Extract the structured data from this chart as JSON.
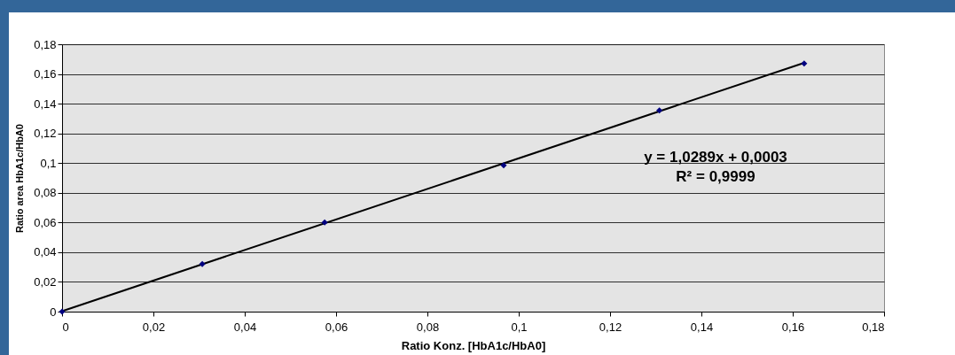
{
  "chart_data": {
    "type": "scatter",
    "xlabel": "Ratio Konz. [HbA1c/HbA0]",
    "ylabel": "Ratio area HbA1c/HbA0",
    "x": [
      0,
      0.0307,
      0.0575,
      0.0967,
      0.1308,
      0.1625
    ],
    "series": [
      {
        "color": "#000080",
        "values": [
          0,
          0.032,
          0.06,
          0.0985,
          0.1355,
          0.167
        ]
      },
      {
        "type": "line",
        "color": "#000000",
        "marker": "none",
        "x": [
          0,
          0.1625
        ],
        "values": [
          0.0003,
          0.1675
        ]
      }
    ],
    "xlim": [
      0,
      0.18
    ],
    "ylim": [
      0,
      0.18
    ],
    "xticks": [
      0,
      {
        "value": 0.02,
        "label": "0,02"
      },
      {
        "value": 0.04,
        "label": "0,04"
      },
      {
        "value": 0.06,
        "label": "0,06"
      },
      {
        "value": 0.08,
        "label": "0,08"
      },
      {
        "value": 0.1,
        "label": "0,1"
      },
      {
        "value": 0.12,
        "label": "0,12"
      },
      {
        "value": 0.14,
        "label": "0,14"
      },
      {
        "value": 0.16,
        "label": "0,16"
      },
      {
        "value": 0.18,
        "label": "0,18"
      }
    ],
    "yticks": [
      0,
      {
        "value": 0.02,
        "label": "0,02"
      },
      {
        "value": 0.04,
        "label": "0,04"
      },
      {
        "value": 0.06,
        "label": "0,06"
      },
      {
        "value": 0.08,
        "label": "0,08"
      },
      {
        "value": 0.1,
        "label": "0,1"
      },
      {
        "value": 0.12,
        "label": "0,12"
      },
      {
        "value": 0.14,
        "label": "0,14"
      },
      {
        "value": 0.16,
        "label": "0,16"
      },
      {
        "value": 0.18,
        "label": "0,18"
      }
    ],
    "grid": "y",
    "marker": "diamond",
    "annotations": [
      "y = 1,0289x + 0,0003",
      "R² = 0,9999"
    ]
  }
}
